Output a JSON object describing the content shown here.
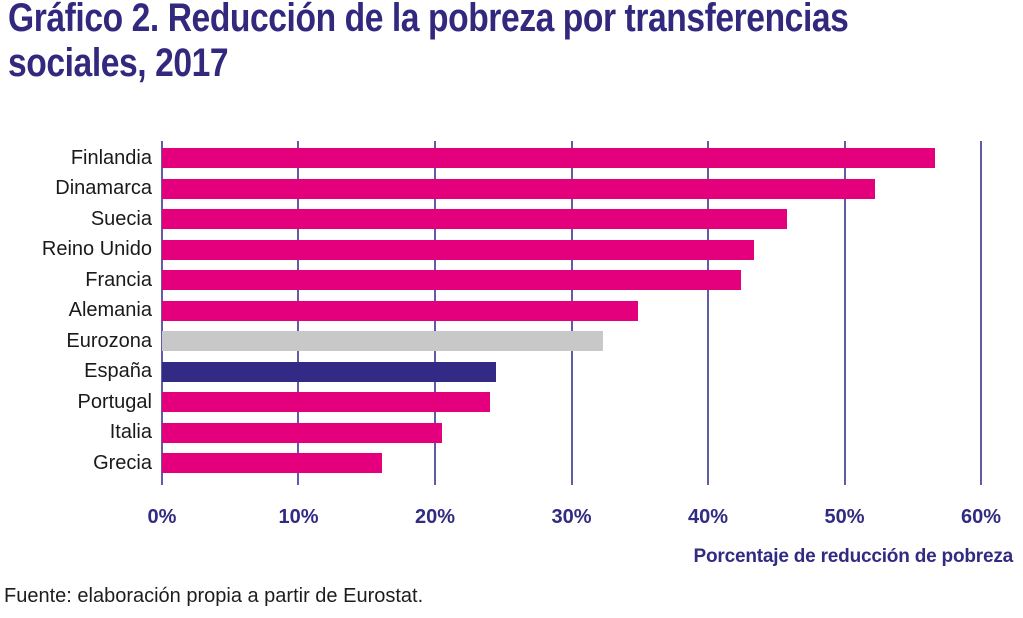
{
  "page": {
    "title_lines": [
      "Gráfico 2. Reducción de la pobreza por transferencias",
      "sociales, 2017"
    ],
    "source": "Fuente: elaboración propia a partir de Eurostat."
  },
  "chart_data": {
    "type": "bar",
    "orientation": "horizontal",
    "title": "Gráfico 2. Reducción de la pobreza por transferencias sociales, 2017",
    "xlabel": "Porcentaje de reducción de pobreza",
    "ylabel": "",
    "xlim": [
      0,
      60
    ],
    "x_tick_labels": [
      "0%",
      "10%",
      "20%",
      "30%",
      "40%",
      "50%",
      "60%"
    ],
    "grid": true,
    "legend": false,
    "unit": "percent",
    "categories": [
      "Finlandia",
      "Dinamarca",
      "Suecia",
      "Reino Unido",
      "Francia",
      "Alemania",
      "Eurozona",
      "España",
      "Portugal",
      "Italia",
      "Grecia"
    ],
    "values": [
      56.6,
      52.2,
      45.8,
      43.4,
      42.4,
      34.9,
      32.3,
      24.5,
      24.0,
      20.5,
      16.1
    ],
    "bar_colors": [
      "#e4007d",
      "#e4007d",
      "#e4007d",
      "#e4007d",
      "#e4007d",
      "#e4007d",
      "#c8c8c8",
      "#332a85",
      "#e4007d",
      "#e4007d",
      "#e4007d"
    ]
  },
  "colors": {
    "primary_magenta": "#e4007d",
    "eurozone_gray": "#c8c8c8",
    "spain_navy": "#332a85",
    "title_indigo": "#32297e",
    "axis_indigo": "#312b82",
    "grid_line": "#615ca8",
    "label_text": "#1a1a1a"
  }
}
